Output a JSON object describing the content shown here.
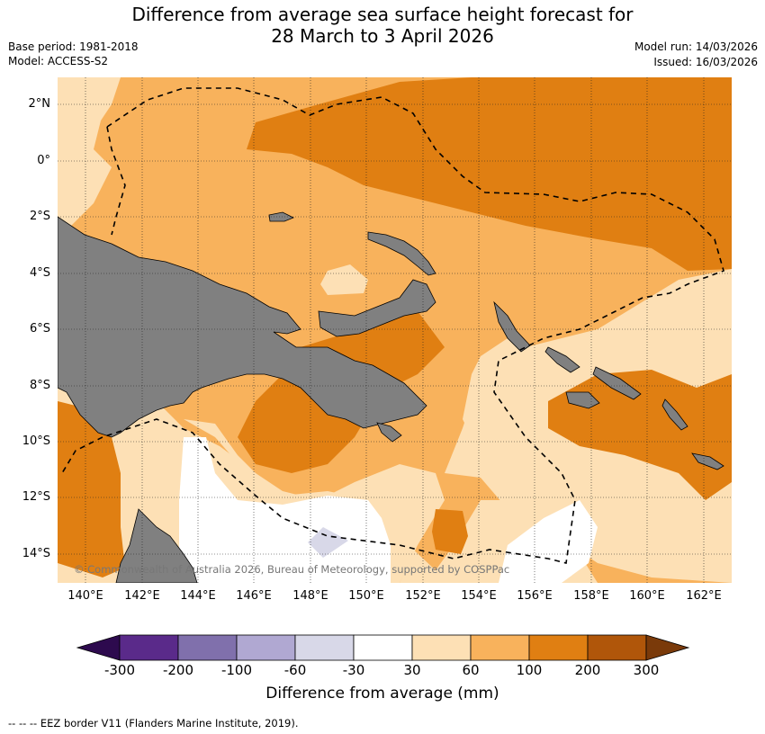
{
  "title": {
    "line1": "Difference from average sea surface height forecast for",
    "line2": "28 March to 3 April 2026"
  },
  "meta": {
    "base_period": "Base period: 1981-2018",
    "model": "Model: ACCESS-S2",
    "model_run": "Model run: 14/03/2026",
    "issued": "Issued: 16/03/2026"
  },
  "lat_labels": [
    "2°N",
    "0°",
    "2°S",
    "4°S",
    "6°S",
    "8°S",
    "10°S",
    "12°S",
    "14°S"
  ],
  "lon_labels": [
    "140°E",
    "142°E",
    "144°E",
    "146°E",
    "148°E",
    "150°E",
    "152°E",
    "154°E",
    "156°E",
    "158°E",
    "160°E",
    "162°E"
  ],
  "copyright": "© Commonwealth of Australia 2026, Bureau of Meteorology, supported by COSPPac",
  "colorbar": {
    "ticks": [
      "-300",
      "-200",
      "-100",
      "-60",
      "-30",
      "30",
      "60",
      "100",
      "200",
      "300"
    ],
    "colors": [
      "#5a2a8a",
      "#8070ac",
      "#b0a8d2",
      "#d8d8e8",
      "#ffffff",
      "#fde0b5",
      "#f8b25c",
      "#e07f12",
      "#b0560a"
    ],
    "under_color": "#2d0a4e",
    "over_color": "#7a3a0a",
    "label": "Difference from average (mm)"
  },
  "legend": {
    "symbol": "--  --  --",
    "text": "EEZ border V11 (Flanders Marine Institute, 2019)."
  },
  "colors": {
    "land": "#808080",
    "level_30_60": "#fde0b5",
    "level_60_100": "#f8b25c",
    "level_100_200": "#e07f12",
    "level_neutral": "#ffffff",
    "level_neg": "#d8d8e8"
  }
}
